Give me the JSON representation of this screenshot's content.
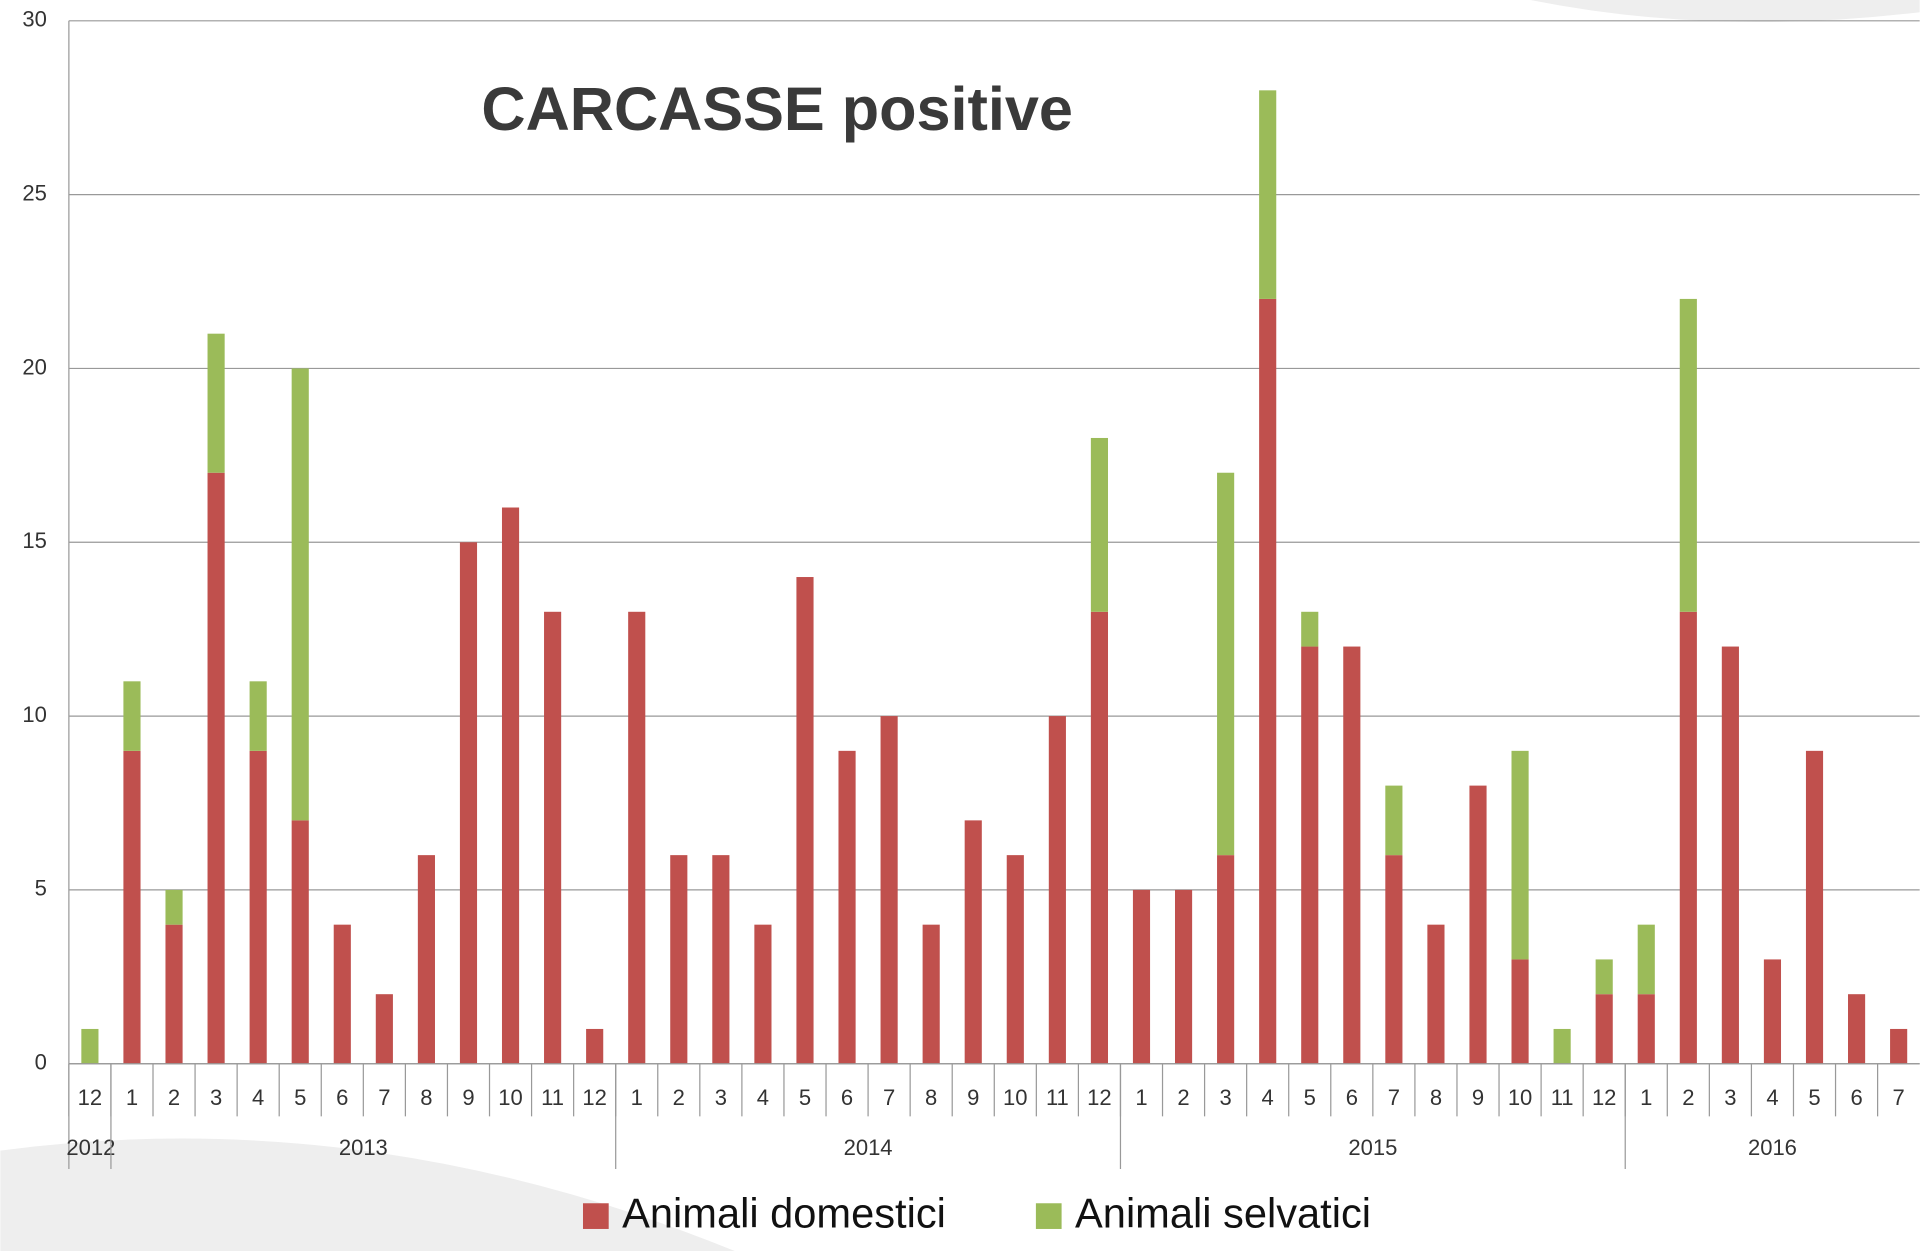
{
  "chart_data": {
    "type": "bar",
    "stacked": true,
    "title": "CARCASSE positive",
    "categories": [
      "12",
      "1",
      "2",
      "3",
      "4",
      "5",
      "6",
      "7",
      "8",
      "9",
      "10",
      "11",
      "12",
      "1",
      "2",
      "3",
      "4",
      "5",
      "6",
      "7",
      "8",
      "9",
      "10",
      "11",
      "12",
      "1",
      "2",
      "3",
      "4",
      "5",
      "6",
      "7",
      "8",
      "9",
      "10",
      "11",
      "12",
      "1",
      "2",
      "3",
      "4",
      "5",
      "6",
      "7"
    ],
    "year_groups": [
      {
        "label": "2012",
        "count": 1
      },
      {
        "label": "2013",
        "count": 12
      },
      {
        "label": "2014",
        "count": 12
      },
      {
        "label": "2015",
        "count": 12
      },
      {
        "label": "2016",
        "count": 7
      }
    ],
    "series": [
      {
        "name": "Animali domestici",
        "color": "#c0504d",
        "values": [
          0,
          9,
          4,
          17,
          9,
          7,
          4,
          2,
          6,
          15,
          16,
          13,
          1,
          13,
          6,
          6,
          4,
          14,
          9,
          10,
          4,
          7,
          6,
          10,
          13,
          5,
          5,
          6,
          22,
          12,
          12,
          6,
          4,
          8,
          3,
          0,
          2,
          2,
          13,
          12,
          3,
          9,
          2,
          1
        ]
      },
      {
        "name": "Animali selvatici",
        "color": "#9bbb59",
        "values": [
          1,
          2,
          1,
          4,
          2,
          13,
          0,
          0,
          0,
          0,
          0,
          0,
          0,
          0,
          0,
          0,
          0,
          0,
          0,
          0,
          0,
          0,
          0,
          0,
          5,
          0,
          0,
          11,
          6,
          1,
          0,
          2,
          0,
          0,
          6,
          1,
          1,
          2,
          9,
          0,
          0,
          0,
          0,
          0
        ]
      }
    ],
    "ylim": [
      0,
      30
    ],
    "yticks": [
      0,
      5,
      10,
      15,
      20,
      25,
      30
    ],
    "grid": true,
    "legend": "bottom"
  }
}
